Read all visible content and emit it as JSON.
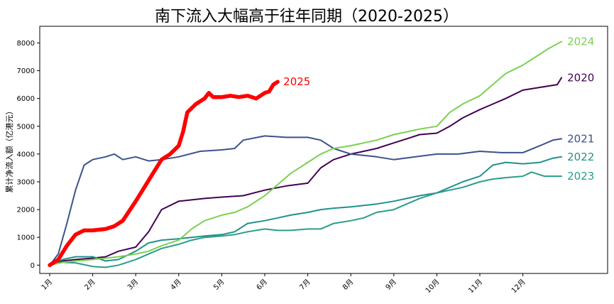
{
  "chart_data": {
    "type": "line",
    "title": "南下流入大幅高于往年同期（2020-2025）",
    "xlabel": "",
    "ylabel": "累计净流入额（亿港元）",
    "ylim": [
      -300,
      8600
    ],
    "yticks": [
      0,
      1000,
      2000,
      3000,
      4000,
      5000,
      6000,
      7000,
      8000
    ],
    "xticks": [
      "1月",
      "2月",
      "3月",
      "4月",
      "5月",
      "6月",
      "7月",
      "8月",
      "9月",
      "10月",
      "11月",
      "12月"
    ],
    "grid": false,
    "x_unit": "month",
    "series": [
      {
        "name": "2020",
        "color": "#440154",
        "points": [
          [
            1,
            0
          ],
          [
            1.3,
            150
          ],
          [
            1.6,
            200
          ],
          [
            2,
            250
          ],
          [
            2.3,
            300
          ],
          [
            2.6,
            500
          ],
          [
            3,
            650
          ],
          [
            3.3,
            1200
          ],
          [
            3.6,
            2000
          ],
          [
            4,
            2300
          ],
          [
            4.3,
            2350
          ],
          [
            4.6,
            2400
          ],
          [
            5,
            2450
          ],
          [
            5.5,
            2500
          ],
          [
            6,
            2700
          ],
          [
            6.5,
            2850
          ],
          [
            7,
            2950
          ],
          [
            7.3,
            3500
          ],
          [
            7.6,
            3800
          ],
          [
            8,
            4000
          ],
          [
            8.3,
            4100
          ],
          [
            8.6,
            4200
          ],
          [
            9,
            4400
          ],
          [
            9.3,
            4550
          ],
          [
            9.6,
            4700
          ],
          [
            10,
            4750
          ],
          [
            10.3,
            5000
          ],
          [
            10.6,
            5300
          ],
          [
            11,
            5600
          ],
          [
            11.3,
            5800
          ],
          [
            11.6,
            6000
          ],
          [
            12,
            6300
          ],
          [
            12.4,
            6400
          ],
          [
            12.8,
            6500
          ],
          [
            12.9,
            6750
          ]
        ]
      },
      {
        "name": "2021",
        "color": "#3b528b",
        "points": [
          [
            1,
            0
          ],
          [
            1.2,
            400
          ],
          [
            1.4,
            1500
          ],
          [
            1.6,
            2700
          ],
          [
            1.8,
            3600
          ],
          [
            2,
            3800
          ],
          [
            2.3,
            3900
          ],
          [
            2.5,
            4000
          ],
          [
            2.7,
            3800
          ],
          [
            3,
            3900
          ],
          [
            3.3,
            3750
          ],
          [
            3.6,
            3800
          ],
          [
            4,
            3900
          ],
          [
            4.5,
            4100
          ],
          [
            5,
            4150
          ],
          [
            5.3,
            4200
          ],
          [
            5.5,
            4500
          ],
          [
            6,
            4650
          ],
          [
            6.5,
            4600
          ],
          [
            7,
            4600
          ],
          [
            7.3,
            4500
          ],
          [
            7.6,
            4200
          ],
          [
            8,
            4000
          ],
          [
            8.3,
            3950
          ],
          [
            8.6,
            3900
          ],
          [
            9,
            3800
          ],
          [
            9.5,
            3900
          ],
          [
            10,
            4000
          ],
          [
            10.5,
            4000
          ],
          [
            11,
            4100
          ],
          [
            11.5,
            4050
          ],
          [
            12,
            4050
          ],
          [
            12.4,
            4300
          ],
          [
            12.7,
            4500
          ],
          [
            12.9,
            4550
          ]
        ]
      },
      {
        "name": "2022",
        "color": "#21918c",
        "points": [
          [
            1,
            0
          ],
          [
            1.3,
            200
          ],
          [
            1.6,
            300
          ],
          [
            2,
            300
          ],
          [
            2.3,
            150
          ],
          [
            2.6,
            200
          ],
          [
            3,
            500
          ],
          [
            3.3,
            800
          ],
          [
            3.6,
            900
          ],
          [
            4,
            950
          ],
          [
            4.3,
            1000
          ],
          [
            4.6,
            1050
          ],
          [
            5,
            1100
          ],
          [
            5.3,
            1200
          ],
          [
            5.6,
            1500
          ],
          [
            6,
            1600
          ],
          [
            6.3,
            1700
          ],
          [
            6.6,
            1800
          ],
          [
            7,
            1900
          ],
          [
            7.3,
            2000
          ],
          [
            7.6,
            2050
          ],
          [
            8,
            2100
          ],
          [
            8.3,
            2150
          ],
          [
            8.6,
            2200
          ],
          [
            9,
            2300
          ],
          [
            9.3,
            2400
          ],
          [
            9.6,
            2500
          ],
          [
            10,
            2600
          ],
          [
            10.3,
            2800
          ],
          [
            10.6,
            3000
          ],
          [
            11,
            3200
          ],
          [
            11.3,
            3600
          ],
          [
            11.6,
            3700
          ],
          [
            12,
            3650
          ],
          [
            12.4,
            3700
          ],
          [
            12.7,
            3850
          ],
          [
            12.9,
            3900
          ]
        ]
      },
      {
        "name": "2023",
        "color": "#2a9d8a",
        "points": [
          [
            1,
            0
          ],
          [
            1.3,
            100
          ],
          [
            1.6,
            80
          ],
          [
            2,
            -50
          ],
          [
            2.3,
            -80
          ],
          [
            2.6,
            0
          ],
          [
            3,
            200
          ],
          [
            3.3,
            400
          ],
          [
            3.6,
            600
          ],
          [
            4,
            750
          ],
          [
            4.3,
            900
          ],
          [
            4.6,
            1000
          ],
          [
            5,
            1050
          ],
          [
            5.3,
            1100
          ],
          [
            5.6,
            1200
          ],
          [
            6,
            1300
          ],
          [
            6.3,
            1250
          ],
          [
            6.6,
            1250
          ],
          [
            7,
            1300
          ],
          [
            7.3,
            1300
          ],
          [
            7.6,
            1500
          ],
          [
            8,
            1600
          ],
          [
            8.3,
            1700
          ],
          [
            8.6,
            1900
          ],
          [
            9,
            2000
          ],
          [
            9.3,
            2200
          ],
          [
            9.6,
            2400
          ],
          [
            10,
            2600
          ],
          [
            10.3,
            2700
          ],
          [
            10.6,
            2800
          ],
          [
            11,
            3000
          ],
          [
            11.3,
            3100
          ],
          [
            11.6,
            3150
          ],
          [
            12,
            3200
          ],
          [
            12.2,
            3350
          ],
          [
            12.5,
            3200
          ],
          [
            12.9,
            3200
          ]
        ]
      },
      {
        "name": "2024",
        "color": "#7ad151",
        "points": [
          [
            1,
            0
          ],
          [
            1.3,
            100
          ],
          [
            1.6,
            150
          ],
          [
            2,
            200
          ],
          [
            2.3,
            250
          ],
          [
            2.6,
            300
          ],
          [
            3,
            400
          ],
          [
            3.3,
            500
          ],
          [
            3.6,
            700
          ],
          [
            4,
            900
          ],
          [
            4.3,
            1300
          ],
          [
            4.6,
            1600
          ],
          [
            5,
            1800
          ],
          [
            5.3,
            1900
          ],
          [
            5.6,
            2100
          ],
          [
            6,
            2500
          ],
          [
            6.3,
            2900
          ],
          [
            6.6,
            3300
          ],
          [
            7,
            3700
          ],
          [
            7.3,
            4000
          ],
          [
            7.6,
            4200
          ],
          [
            8,
            4300
          ],
          [
            8.3,
            4400
          ],
          [
            8.6,
            4500
          ],
          [
            9,
            4700
          ],
          [
            9.3,
            4800
          ],
          [
            9.6,
            4900
          ],
          [
            10,
            5000
          ],
          [
            10.3,
            5500
          ],
          [
            10.6,
            5800
          ],
          [
            11,
            6100
          ],
          [
            11.3,
            6500
          ],
          [
            11.6,
            6900
          ],
          [
            12,
            7200
          ],
          [
            12.3,
            7500
          ],
          [
            12.6,
            7800
          ],
          [
            12.9,
            8050
          ]
        ]
      },
      {
        "name": "2025",
        "color": "#ff0000",
        "points": [
          [
            1,
            0
          ],
          [
            1.2,
            200
          ],
          [
            1.4,
            700
          ],
          [
            1.6,
            1100
          ],
          [
            1.8,
            1250
          ],
          [
            2,
            1250
          ],
          [
            2.3,
            1300
          ],
          [
            2.5,
            1400
          ],
          [
            2.7,
            1600
          ],
          [
            3,
            2300
          ],
          [
            3.2,
            2800
          ],
          [
            3.4,
            3300
          ],
          [
            3.6,
            3800
          ],
          [
            3.8,
            4000
          ],
          [
            4,
            4300
          ],
          [
            4.1,
            4800
          ],
          [
            4.2,
            5500
          ],
          [
            4.4,
            5800
          ],
          [
            4.6,
            6000
          ],
          [
            4.7,
            6200
          ],
          [
            4.8,
            6050
          ],
          [
            5,
            6050
          ],
          [
            5.2,
            6100
          ],
          [
            5.4,
            6050
          ],
          [
            5.6,
            6100
          ],
          [
            5.8,
            6000
          ],
          [
            6,
            6200
          ],
          [
            6.1,
            6250
          ],
          [
            6.2,
            6500
          ],
          [
            6.3,
            6600
          ]
        ]
      }
    ]
  }
}
